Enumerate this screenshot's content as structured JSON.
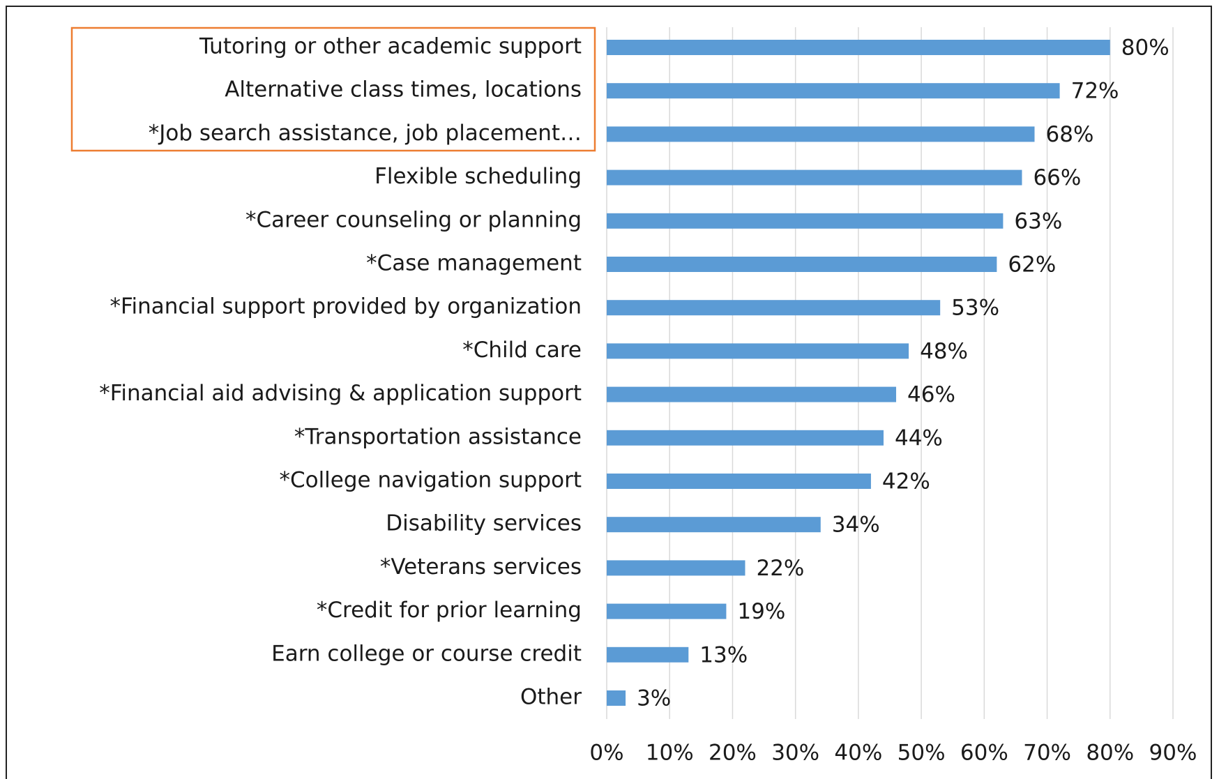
{
  "chart_data": {
    "type": "barh",
    "categories": [
      "Tutoring or other academic support",
      "Alternative class times, locations",
      "*Job search assistance, job placement…",
      "Flexible scheduling",
      "*Career counseling or planning",
      "*Case management",
      "*Financial support provided by organization",
      "*Child care",
      "*Financial aid advising & application support",
      "*Transportation assistance",
      "*College navigation support",
      "Disability services",
      "*Veterans services",
      "*Credit for prior learning",
      "Earn college or course credit",
      "Other"
    ],
    "values": [
      80,
      72,
      68,
      66,
      63,
      62,
      53,
      48,
      46,
      44,
      42,
      34,
      22,
      19,
      13,
      3
    ],
    "value_labels": [
      "80%",
      "72%",
      "68%",
      "66%",
      "63%",
      "62%",
      "53%",
      "48%",
      "46%",
      "44%",
      "42%",
      "34%",
      "22%",
      "19%",
      "13%",
      "3%"
    ],
    "color": "#5b9bd5",
    "xlim": [
      0,
      90
    ],
    "xticks": [
      {
        "value": 0,
        "label": "0%"
      },
      {
        "value": 10,
        "label": "10%"
      },
      {
        "value": 20,
        "label": "20%"
      },
      {
        "value": 30,
        "label": "30%"
      },
      {
        "value": 40,
        "label": "40%"
      },
      {
        "value": 50,
        "label": "50%"
      },
      {
        "value": 60,
        "label": "60%"
      },
      {
        "value": 70,
        "label": "70%"
      },
      {
        "value": 80,
        "label": "80%"
      },
      {
        "value": 90,
        "label": "90%"
      }
    ],
    "grid": true
  }
}
